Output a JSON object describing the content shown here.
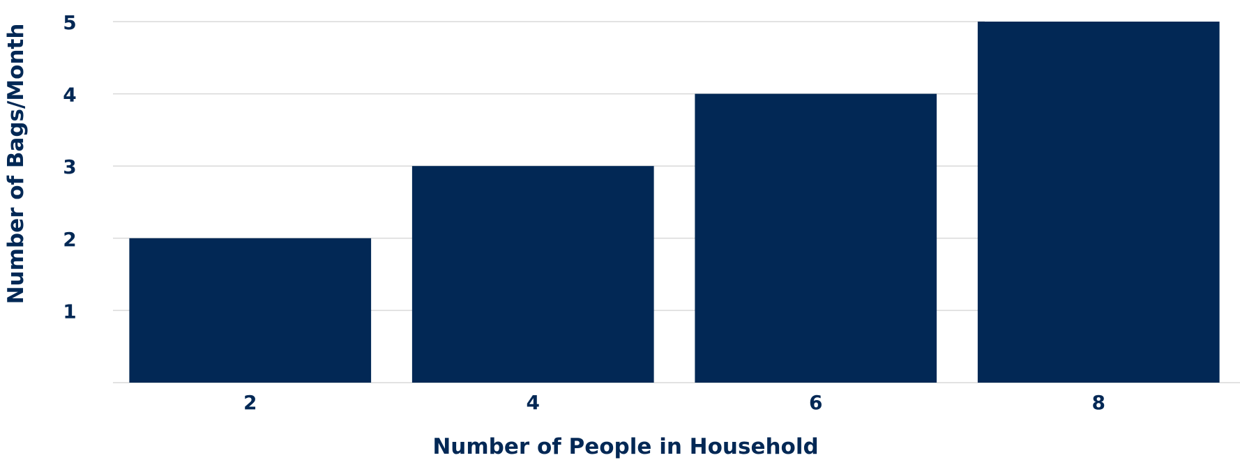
{
  "chart_data": {
    "type": "bar",
    "categories": [
      "2",
      "4",
      "6",
      "8"
    ],
    "values": [
      2,
      3,
      4,
      5
    ],
    "title": "",
    "xlabel": "Number of People in Household",
    "ylabel": "Number of Bags/Month",
    "ylim": [
      0,
      5
    ],
    "yticks": [
      1,
      2,
      3,
      4,
      5
    ],
    "grid": true,
    "colors": {
      "bar": "#022855",
      "text": "#022855",
      "grid": "#d9d9d9"
    }
  }
}
